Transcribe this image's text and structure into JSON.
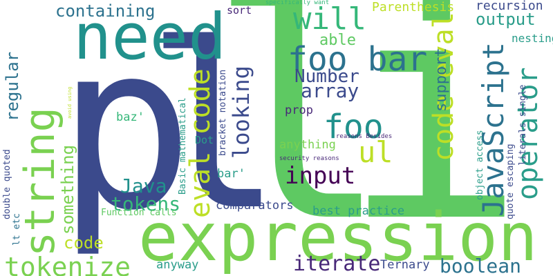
{
  "words": [
    {
      "text": "li",
      "color": "#5ec962"
    },
    {
      "text": "pl",
      "color": "#3b4a8c"
    },
    {
      "text": "need",
      "color": "#21918c"
    },
    {
      "text": "expression",
      "color": "#7ad151"
    },
    {
      "text": "string",
      "color": "#7ad151"
    },
    {
      "text": "foo bar",
      "color": "#2c728e"
    },
    {
      "text": "tokenize",
      "color": "#7ad151"
    },
    {
      "text": "eval code",
      "color": "#bddf26"
    },
    {
      "text": "JavaScript",
      "color": "#2c728e"
    },
    {
      "text": "code eval",
      "color": "#bddf26"
    },
    {
      "text": "operator",
      "color": "#2a9d8a"
    },
    {
      "text": "will",
      "color": "#35b779"
    },
    {
      "text": "foo",
      "color": "#21918c"
    },
    {
      "text": "ul",
      "color": "#bddf26"
    },
    {
      "text": "input",
      "color": "#440154"
    },
    {
      "text": "iterate",
      "color": "#482878"
    },
    {
      "text": "boolean",
      "color": "#2c728e"
    },
    {
      "text": "containing",
      "color": "#2c728e"
    },
    {
      "text": "looking",
      "color": "#3b4a8c"
    },
    {
      "text": "Java",
      "color": "#21918c"
    },
    {
      "text": "tokens",
      "color": "#35b779"
    },
    {
      "text": "something",
      "color": "#7ad151"
    },
    {
      "text": "array",
      "color": "#3b4a8c"
    },
    {
      "text": "Number",
      "color": "#3b4a8c"
    },
    {
      "text": "able",
      "color": "#5ec962"
    },
    {
      "text": "output",
      "color": "#2a9d8a"
    },
    {
      "text": "support",
      "color": "#2c728e"
    },
    {
      "text": "regular",
      "color": "#2c728e"
    },
    {
      "text": "code",
      "color": "#bddf26"
    },
    {
      "text": "Parenthesis",
      "color": "#bddf26"
    },
    {
      "text": "recursion",
      "color": "#3b4a8c"
    },
    {
      "text": "nesting",
      "color": "#2a9d8a"
    },
    {
      "text": "comparators",
      "color": "#3b4a8c"
    },
    {
      "text": "best practice",
      "color": "#2a9d8a"
    },
    {
      "text": "Ternary",
      "color": "#3b4a8c"
    },
    {
      "text": "anyway",
      "color": "#2a9d8a"
    },
    {
      "text": "baz'",
      "color": "#35b779"
    },
    {
      "text": "bar'",
      "color": "#2a9d8a"
    },
    {
      "text": "prop",
      "color": "#482878"
    },
    {
      "text": "anything",
      "color": "#7ad151"
    },
    {
      "text": "sort",
      "color": "#482878"
    },
    {
      "text": "Dot",
      "color": "#2a9d8a"
    },
    {
      "text": "Function calls",
      "color": "#5ec962"
    },
    {
      "text": "Basic mathematical",
      "color": "#2a9d8a"
    },
    {
      "text": "bracket notation",
      "color": "#3b4a8c"
    },
    {
      "text": "object access",
      "color": "#2a9d8a"
    },
    {
      "text": "quote escaping",
      "color": "#3b4a8c"
    },
    {
      "text": "literals single",
      "color": "#3b4a8c"
    },
    {
      "text": "double quoted",
      "color": "#3b4a8c"
    },
    {
      "text": "lt etc",
      "color": "#2c728e"
    },
    {
      "text": "specifically want",
      "color": "#35b779"
    },
    {
      "text": "avoid using",
      "color": "#bddf26"
    },
    {
      "text": "reasons Besides",
      "color": "#482878"
    },
    {
      "text": "security reasons",
      "color": "#482878"
    }
  ]
}
